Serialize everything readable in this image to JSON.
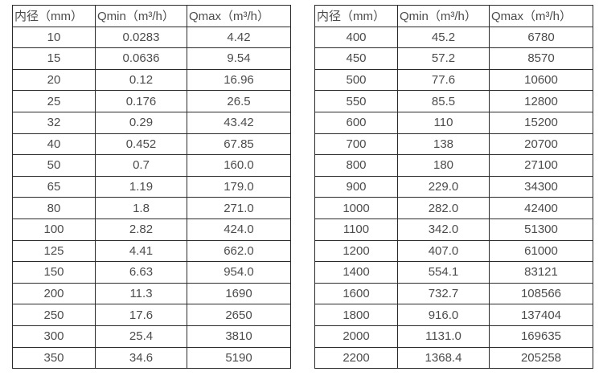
{
  "page": {
    "background_color": "#ffffff",
    "border_color": "#2b2b2b",
    "text_color": "#4c4c4c"
  },
  "tables": [
    {
      "name": "flow-table-small-diameters",
      "headers": [
        "内径（mm）",
        "Qmin（m³/h）",
        "Qmax（m³/h）"
      ],
      "rows": [
        [
          "10",
          "0.0283",
          "4.42"
        ],
        [
          "15",
          "0.0636",
          "9.54"
        ],
        [
          "20",
          "0.12",
          "16.96"
        ],
        [
          "25",
          "0.176",
          "26.5"
        ],
        [
          "32",
          "0.29",
          "43.42"
        ],
        [
          "40",
          "0.452",
          "67.85"
        ],
        [
          "50",
          "0.7",
          "160.0"
        ],
        [
          "65",
          "1.19",
          "179.0"
        ],
        [
          "80",
          "1.8",
          "271.0"
        ],
        [
          "100",
          "2.82",
          "424.0"
        ],
        [
          "125",
          "4.41",
          "662.0"
        ],
        [
          "150",
          "6.63",
          "954.0"
        ],
        [
          "200",
          "11.3",
          "1690"
        ],
        [
          "250",
          "17.6",
          "2650"
        ],
        [
          "300",
          "25.4",
          "3810"
        ],
        [
          "350",
          "34.6",
          "5190"
        ]
      ]
    },
    {
      "name": "flow-table-large-diameters",
      "headers": [
        "内径（mm）",
        "Qmin（m³/h）",
        "Qmax（m³/h）"
      ],
      "rows": [
        [
          "400",
          "45.2",
          "6780"
        ],
        [
          "450",
          "57.2",
          "8570"
        ],
        [
          "500",
          "77.6",
          "10600"
        ],
        [
          "550",
          "85.5",
          "12800"
        ],
        [
          "600",
          "110",
          "15200"
        ],
        [
          "700",
          "138",
          "20700"
        ],
        [
          "800",
          "180",
          "27100"
        ],
        [
          "900",
          "229.0",
          "34300"
        ],
        [
          "1000",
          "282.0",
          "42400"
        ],
        [
          "1100",
          "342.0",
          "51300"
        ],
        [
          "1200",
          "407.0",
          "61000"
        ],
        [
          "1400",
          "554.1",
          "83121"
        ],
        [
          "1600",
          "732.7",
          "108566"
        ],
        [
          "1800",
          "916.0",
          "137404"
        ],
        [
          "2000",
          "1131.0",
          "169635"
        ],
        [
          "2200",
          "1368.4",
          "205258"
        ]
      ]
    }
  ]
}
